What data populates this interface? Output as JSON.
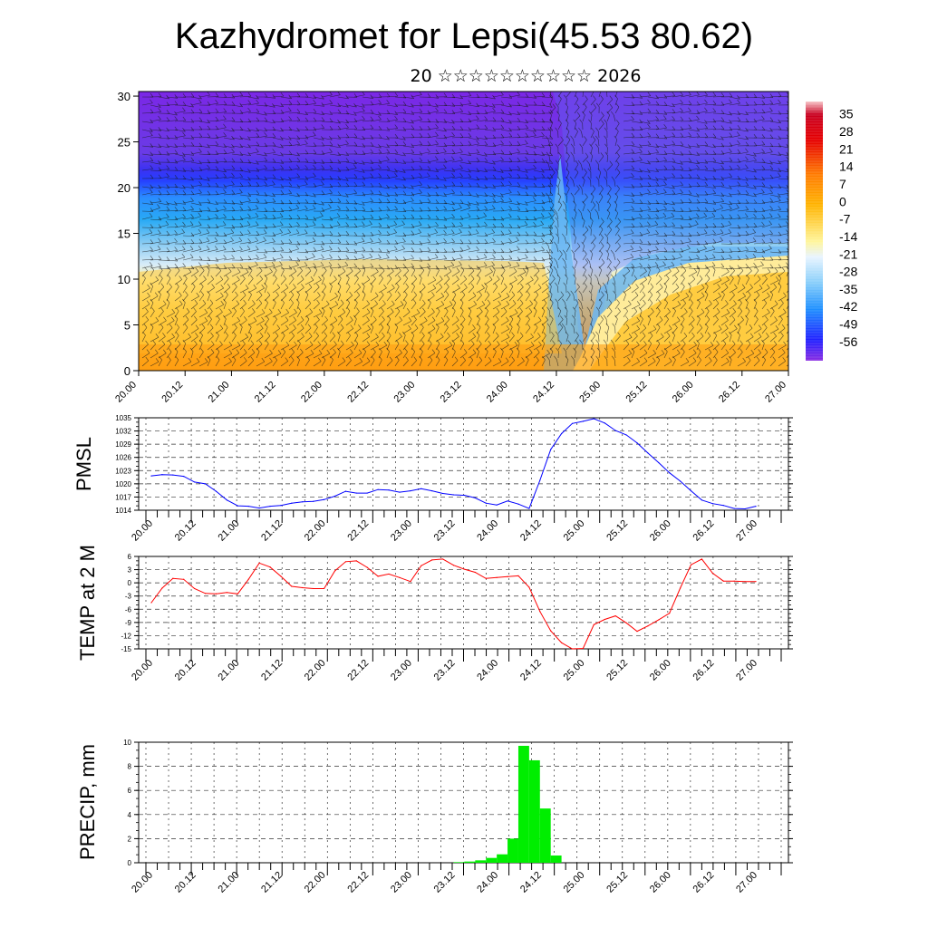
{
  "title": "Kazhydromet for Lepsi(45.53 80.62)",
  "subtitle": "20 ☆☆☆☆☆☆☆☆☆☆ 2026",
  "chart_data": [
    {
      "type": "heatmap",
      "name": "temperature cross-section with wind barbs",
      "x_ticks": [
        "20.00",
        "20.12",
        "21.00",
        "21.12",
        "22.00",
        "22.12",
        "23.00",
        "23.12",
        "24.00",
        "24.12",
        "25.00",
        "25.12",
        "26.00",
        "26.12",
        "27.00"
      ],
      "ylim": [
        0,
        30.5
      ],
      "y_ticks": [
        0,
        5,
        10,
        15,
        20,
        25,
        30
      ],
      "colorbar": {
        "labels": [
          "35",
          "28",
          "21",
          "14",
          "7",
          "0",
          "-7",
          "-14",
          "-21",
          "-28",
          "-35",
          "-42",
          "-49",
          "-56"
        ],
        "range": [
          -63,
          42
        ]
      },
      "legend": "right",
      "grid": false
    },
    {
      "type": "line",
      "ylabel": "PMSL",
      "color": "#0000ff",
      "ylim": [
        1014,
        1035
      ],
      "y_ticks": [
        1014,
        1017,
        1020,
        1023,
        1026,
        1029,
        1032,
        1035
      ],
      "x_ticks": [
        "20.00",
        "20.12",
        "21.00",
        "21.12",
        "22.00",
        "22.12",
        "23.00",
        "23.12",
        "24.00",
        "24.12",
        "25.00",
        "25.12",
        "26.00",
        "26.12",
        "27.00"
      ],
      "x": [
        0,
        3,
        6,
        9,
        12,
        15,
        18,
        21,
        24,
        27,
        30,
        33,
        36,
        39,
        42,
        45,
        48,
        51,
        54,
        57,
        60,
        63,
        66,
        69,
        72,
        75,
        78,
        81,
        84,
        87,
        90,
        93,
        96,
        99,
        102,
        105,
        108,
        111,
        114,
        117,
        120,
        123,
        126,
        129,
        132,
        135,
        138,
        141,
        144,
        147,
        150,
        153,
        156,
        159,
        162,
        165,
        168
      ],
      "y": [
        1021.8,
        1022.1,
        1022.0,
        1021.7,
        1020.4,
        1020.0,
        1018.3,
        1016.3,
        1015.0,
        1014.9,
        1014.5,
        1014.9,
        1015.1,
        1015.6,
        1015.9,
        1016.0,
        1016.4,
        1017.2,
        1018.3,
        1017.9,
        1017.9,
        1018.7,
        1018.6,
        1018.1,
        1018.4,
        1018.9,
        1018.4,
        1017.8,
        1017.5,
        1017.4,
        1016.8,
        1015.6,
        1015.2,
        1016.1,
        1015.4,
        1014.4,
        1020.8,
        1027.8,
        1031.4,
        1033.7,
        1034.2,
        1034.8,
        1033.8,
        1032.1,
        1031.1,
        1029.3,
        1027.0,
        1024.8,
        1022.5,
        1020.6,
        1018.4,
        1016.3,
        1015.5,
        1015.1,
        1014.4,
        1014.3,
        1014.9
      ],
      "grid": true
    },
    {
      "type": "line",
      "ylabel": "TEMP at 2 M",
      "color": "#ff0000",
      "ylim": [
        -15,
        6
      ],
      "y_ticks": [
        6,
        3,
        0,
        -3,
        -6,
        -9,
        -12,
        -15
      ],
      "x_ticks": [
        "20.00",
        "20.12",
        "21.00",
        "21.12",
        "22.00",
        "22.12",
        "23.00",
        "23.12",
        "24.00",
        "24.12",
        "25.00",
        "25.12",
        "26.00",
        "26.12",
        "27.00"
      ],
      "x": [
        0,
        3,
        6,
        9,
        12,
        15,
        18,
        21,
        24,
        27,
        30,
        33,
        36,
        39,
        42,
        45,
        48,
        51,
        54,
        57,
        60,
        63,
        66,
        69,
        72,
        75,
        78,
        81,
        84,
        87,
        90,
        93,
        96,
        99,
        102,
        105,
        108,
        111,
        114,
        117,
        120,
        123,
        126,
        129,
        132,
        135,
        138,
        141,
        144,
        147,
        150,
        153,
        156,
        159,
        162,
        165,
        168
      ],
      "y": [
        -4.5,
        -1.2,
        1.0,
        0.8,
        -1.3,
        -2.4,
        -2.5,
        -2.2,
        -2.5,
        0.8,
        4.5,
        3.6,
        1.5,
        -0.8,
        -1.1,
        -1.3,
        -1.3,
        2.7,
        4.8,
        5.0,
        3.5,
        1.5,
        2.0,
        1.2,
        0.3,
        3.9,
        5.2,
        5.4,
        4.0,
        3.1,
        2.4,
        1.0,
        1.2,
        1.4,
        1.6,
        -1.0,
        -6.5,
        -10.9,
        -13.6,
        -15.0,
        -14.9,
        -9.5,
        -8.3,
        -7.5,
        -9.1,
        -11.0,
        -9.8,
        -8.4,
        -6.9,
        -1.2,
        4.1,
        5.4,
        2.2,
        0.4,
        0.4,
        0.3,
        0.3
      ],
      "grid": true
    },
    {
      "type": "bar",
      "ylabel": "PRECIP, mm",
      "color": "#00ee00",
      "ylim": [
        0,
        10
      ],
      "y_ticks": [
        0,
        2,
        4,
        6,
        8,
        10
      ],
      "x_ticks": [
        "20.00",
        "20.12",
        "21.00",
        "21.12",
        "22.00",
        "22.12",
        "23.00",
        "23.12",
        "24.00",
        "24.12",
        "25.00",
        "25.12",
        "26.00",
        "26.12",
        "27.00"
      ],
      "x_start": [
        84,
        87,
        90,
        93,
        96,
        99,
        102,
        105,
        108,
        111
      ],
      "x_end": [
        87,
        90,
        93,
        96,
        99,
        102,
        105,
        108,
        111,
        114
      ],
      "values": [
        0.05,
        0.1,
        0.2,
        0.4,
        0.7,
        2.0,
        9.7,
        8.5,
        4.5,
        0.6
      ],
      "grid": true
    }
  ]
}
